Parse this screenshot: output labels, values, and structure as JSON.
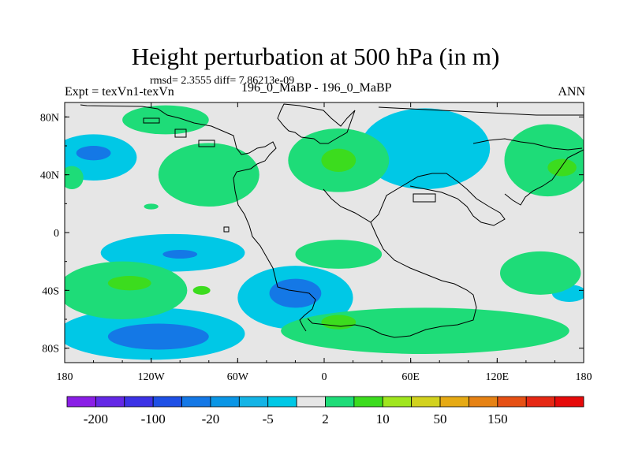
{
  "chart_data": {
    "type": "heatmap",
    "title": "Height perturbation at 500 hPa (in m)",
    "stats_text": "rmsd= 2.3555  diff= 7.86213e-09",
    "left_label": "Expt = texVn1-texVn",
    "center_label": "196_0_MaBP - 196_0_MaBP",
    "right_label": "ANN",
    "x_axis": {
      "range": [
        -180,
        180
      ],
      "ticks": [
        {
          "value": -180,
          "label": "180"
        },
        {
          "value": -120,
          "label": "120W"
        },
        {
          "value": -60,
          "label": "60W"
        },
        {
          "value": 0,
          "label": "0"
        },
        {
          "value": 60,
          "label": "60E"
        },
        {
          "value": 120,
          "label": "120E"
        },
        {
          "value": 180,
          "label": "180"
        }
      ]
    },
    "y_axis": {
      "range": [
        -90,
        90
      ],
      "ticks": [
        {
          "value": 80,
          "label": "80N"
        },
        {
          "value": 40,
          "label": "40N"
        },
        {
          "value": 0,
          "label": "0"
        },
        {
          "value": -40,
          "label": "40S"
        },
        {
          "value": -80,
          "label": "80S"
        }
      ]
    },
    "colorbar": {
      "colors": [
        "#8a1ee6",
        "#6428e6",
        "#3c32e6",
        "#1e50e6",
        "#1478e6",
        "#0a96e6",
        "#14b4e6",
        "#00c8e6",
        "#e6e6e6",
        "#1edc78",
        "#3cdc1e",
        "#a0e61e",
        "#d2d21e",
        "#e6aa14",
        "#e68214",
        "#e65014",
        "#e62814",
        "#e60a0a"
      ],
      "labels": [
        {
          "boundary": 1,
          "text": "-200"
        },
        {
          "boundary": 3,
          "text": "-100"
        },
        {
          "boundary": 5,
          "text": "-20"
        },
        {
          "boundary": 7,
          "text": "-5"
        },
        {
          "boundary": 9,
          "text": "2"
        },
        {
          "boundary": 11,
          "text": "10"
        },
        {
          "boundary": 13,
          "text": "50"
        },
        {
          "boundary": 15,
          "text": "150"
        }
      ]
    },
    "regions": [
      {
        "level": "-5",
        "color": "#00c8e6",
        "lon": -160,
        "lat": 52,
        "rlon": 30,
        "rlat": 16
      },
      {
        "level": "-20",
        "color": "#1478e6",
        "lon": -160,
        "lat": 55,
        "rlon": 12,
        "rlat": 5
      },
      {
        "level": "-5",
        "color": "#00c8e6",
        "lon": -85,
        "lat": 42,
        "rlon": 24,
        "rlat": 14
      },
      {
        "level": "-20",
        "color": "#1478e6",
        "lon": -85,
        "lat": 42,
        "rlon": 10,
        "rlat": 5
      },
      {
        "level": "-5",
        "color": "#00c8e6",
        "lon": 70,
        "lat": 58,
        "rlon": 45,
        "rlat": 28
      },
      {
        "level": "-5",
        "color": "#00c8e6",
        "lon": -105,
        "lat": -14,
        "rlon": 50,
        "rlat": 13
      },
      {
        "level": "-20",
        "color": "#1478e6",
        "lon": -100,
        "lat": -15,
        "rlon": 12,
        "rlat": 3
      },
      {
        "level": "-5",
        "color": "#00c8e6",
        "lon": -20,
        "lat": -45,
        "rlon": 40,
        "rlat": 22
      },
      {
        "level": "-20",
        "color": "#1478e6",
        "lon": -20,
        "lat": -42,
        "rlon": 18,
        "rlat": 10
      },
      {
        "level": "-5",
        "color": "#00c8e6",
        "lon": -120,
        "lat": -70,
        "rlon": 65,
        "rlat": 18
      },
      {
        "level": "-20",
        "color": "#1478e6",
        "lon": -115,
        "lat": -72,
        "rlon": 35,
        "rlat": 9
      },
      {
        "level": "-5",
        "color": "#00c8e6",
        "lon": 170,
        "lat": -42,
        "rlon": 12,
        "rlat": 6
      },
      {
        "level": "2",
        "color": "#1edc78",
        "lon": -110,
        "lat": 78,
        "rlon": 30,
        "rlat": 10
      },
      {
        "level": "2",
        "color": "#1edc78",
        "lon": -80,
        "lat": 40,
        "rlon": 35,
        "rlat": 22
      },
      {
        "level": "2",
        "color": "#1edc78",
        "lon": 10,
        "lat": 50,
        "rlon": 35,
        "rlat": 22
      },
      {
        "level": "10",
        "color": "#3cdc1e",
        "lon": 10,
        "lat": 50,
        "rlon": 12,
        "rlat": 8
      },
      {
        "level": "2",
        "color": "#1edc78",
        "lon": 155,
        "lat": 50,
        "rlon": 30,
        "rlat": 25
      },
      {
        "level": "10",
        "color": "#3cdc1e",
        "lon": 165,
        "lat": 45,
        "rlon": 10,
        "rlat": 6
      },
      {
        "level": "2",
        "color": "#1edc78",
        "lon": -175,
        "lat": 38,
        "rlon": 8,
        "rlat": 8
      },
      {
        "level": "2",
        "color": "#1edc78",
        "lon": -120,
        "lat": 18,
        "rlon": 5,
        "rlat": 2
      },
      {
        "level": "2",
        "color": "#1edc78",
        "lon": -140,
        "lat": -40,
        "rlon": 45,
        "rlat": 20
      },
      {
        "level": "10",
        "color": "#3cdc1e",
        "lon": -135,
        "lat": -35,
        "rlon": 15,
        "rlat": 5
      },
      {
        "level": "10",
        "color": "#3cdc1e",
        "lon": -85,
        "lat": -40,
        "rlon": 6,
        "rlat": 3
      },
      {
        "level": "2",
        "color": "#1edc78",
        "lon": 10,
        "lat": -15,
        "rlon": 30,
        "rlat": 10
      },
      {
        "level": "2",
        "color": "#1edc78",
        "lon": 150,
        "lat": -28,
        "rlon": 28,
        "rlat": 15
      },
      {
        "level": "2",
        "color": "#1edc78",
        "lon": 70,
        "lat": -68,
        "rlon": 100,
        "rlat": 16
      },
      {
        "level": "10",
        "color": "#3cdc1e",
        "lon": 10,
        "lat": -62,
        "rlon": 12,
        "rlat": 5
      }
    ]
  }
}
